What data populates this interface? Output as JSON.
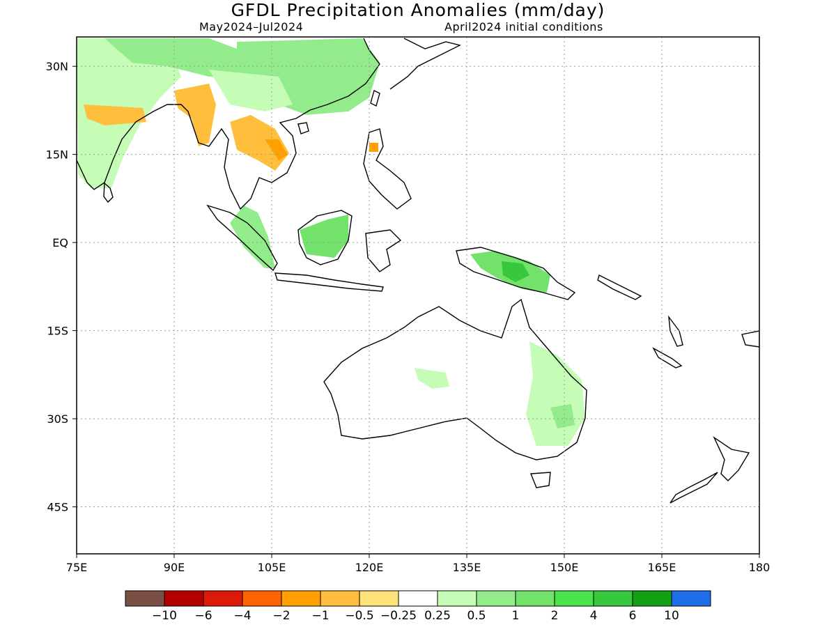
{
  "title": "GFDL Precipitation Anomalies (mm/day)",
  "subtitle_left": "May2024–Jul2024",
  "subtitle_right": "April2024 initial conditions",
  "map": {
    "lon_range": [
      75,
      180
    ],
    "lat_range": [
      -53,
      35
    ],
    "x_ticks": [
      "75E",
      "90E",
      "105E",
      "120E",
      "135E",
      "150E",
      "165E",
      "180"
    ],
    "y_ticks": [
      "30N",
      "15N",
      "EQ",
      "15S",
      "30S",
      "45S"
    ],
    "grid": "dotted",
    "coastline_color": "#000000",
    "regions": [
      {
        "name": "India / Himalaya",
        "category": "0.25-0.5"
      },
      {
        "name": "Tibetan Plateau",
        "category": "0.5-1"
      },
      {
        "name": "East China",
        "category": "0.5-1"
      },
      {
        "name": "Gangetic Plain",
        "category": "-1 to -0.5"
      },
      {
        "name": "Myanmar / Bangladesh",
        "category": "-1 to -0.5"
      },
      {
        "name": "Thailand / Laos / Vietnam",
        "category": "-1 to -0.5"
      },
      {
        "name": "Sumatra",
        "category": "0.5-1"
      },
      {
        "name": "Borneo",
        "category": "1-2"
      },
      {
        "name": "New Guinea",
        "category": "1-2"
      },
      {
        "name": "Eastern Australia",
        "category": "0.25-0.5"
      },
      {
        "name": "Central Australia",
        "category": "0.25-0.5"
      }
    ]
  },
  "colorbar": {
    "colors": [
      "#7a4f44",
      "#b30000",
      "#dd1a0a",
      "#ff6200",
      "#ffa000",
      "#ffbf3c",
      "#ffe37a",
      "#ffffff",
      "#c6fdb6",
      "#93ec8b",
      "#72e26a",
      "#4be34c",
      "#37c83e",
      "#13a014",
      "#1e6eea"
    ],
    "labels": [
      "−10",
      "−6",
      "−4",
      "−2",
      "−1",
      "−0.5",
      "−0.25",
      "0.25",
      "0.5",
      "1",
      "2",
      "4",
      "6",
      "10"
    ]
  }
}
